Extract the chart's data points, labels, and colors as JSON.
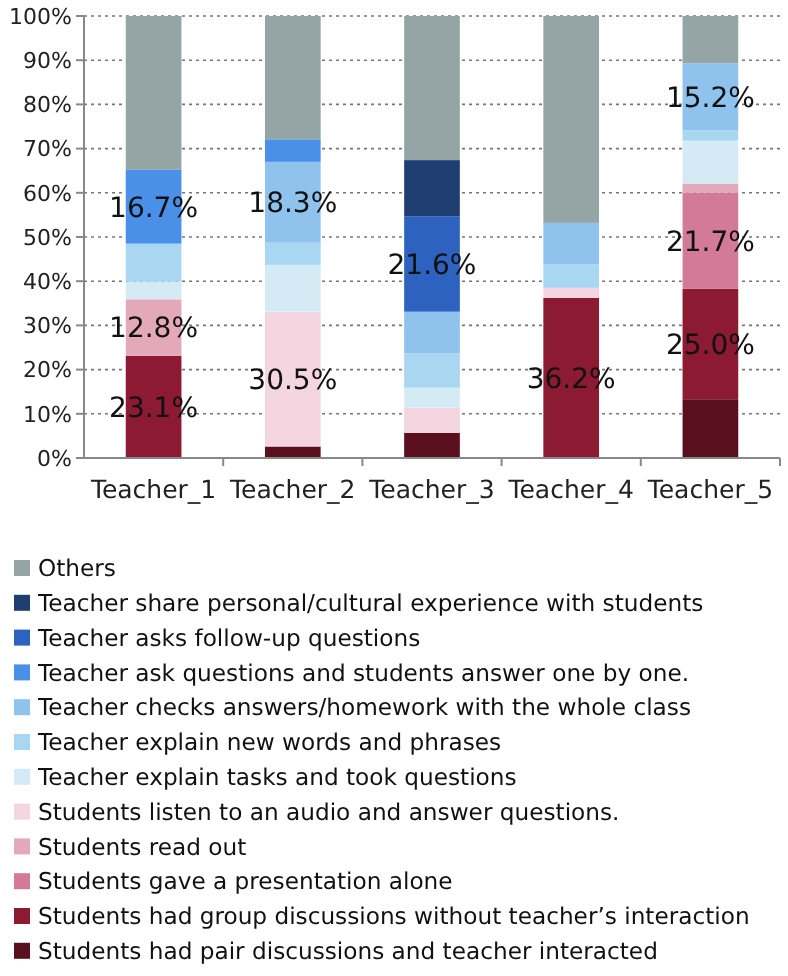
{
  "chart_data": {
    "type": "bar",
    "stacked": true,
    "categories": [
      "Teacher_1",
      "Teacher_2",
      "Teacher_3",
      "Teacher_4",
      "Teacher_5"
    ],
    "ylim": [
      0,
      100
    ],
    "yticks": [
      {
        "value": 0,
        "label": "0%"
      },
      {
        "value": 10,
        "label": "10%"
      },
      {
        "value": 20,
        "label": "20%"
      },
      {
        "value": 30,
        "label": "30%"
      },
      {
        "value": 40,
        "label": "40%"
      },
      {
        "value": 50,
        "label": "50%"
      },
      {
        "value": 60,
        "label": "60%"
      },
      {
        "value": 70,
        "label": "70%"
      },
      {
        "value": 80,
        "label": "80%"
      },
      {
        "value": 90,
        "label": "90%"
      },
      {
        "value": 100,
        "label": "100%"
      }
    ],
    "grid": "y",
    "legend": "bottom",
    "series": [
      {
        "name": "Students had pair discussions and teacher interacted",
        "color": "#5a0f1e",
        "values": [
          0,
          2.6,
          5.7,
          0,
          13.3
        ],
        "value_labels": [
          null,
          null,
          null,
          null,
          null
        ]
      },
      {
        "name": "Students had group discussions without teacher’s interaction",
        "color": "#8b1a32",
        "values": [
          23.1,
          0,
          0,
          36.2,
          25.0
        ],
        "value_labels": [
          "23.1%",
          null,
          null,
          "36.2%",
          "25.0%"
        ]
      },
      {
        "name": "Students gave a presentation alone",
        "color": "#d27a98",
        "values": [
          0,
          0,
          0,
          0,
          21.7
        ],
        "value_labels": [
          null,
          null,
          null,
          null,
          "21.7%"
        ]
      },
      {
        "name": "Students read out",
        "color": "#e3a9bb",
        "values": [
          12.8,
          0,
          0,
          0,
          2.1
        ],
        "value_labels": [
          "12.8%",
          null,
          null,
          null,
          null
        ]
      },
      {
        "name": "Students listen to an audio and answer questions.",
        "color": "#f3d6df",
        "values": [
          0,
          30.5,
          5.7,
          2.3,
          0
        ],
        "value_labels": [
          null,
          "30.5%",
          null,
          null,
          null
        ]
      },
      {
        "name": "Teacher explain tasks and took questions",
        "color": "#d4ebf6",
        "values": [
          4.0,
          10.6,
          4.5,
          0,
          9.7
        ],
        "value_labels": [
          null,
          null,
          null,
          null,
          null
        ]
      },
      {
        "name": "Teacher explain new words and phrases",
        "color": "#a9d6f0",
        "values": [
          8.6,
          5.0,
          7.8,
          5.3,
          2.3
        ],
        "value_labels": [
          null,
          null,
          null,
          null,
          null
        ]
      },
      {
        "name": "Teacher checks answers/homework with the whole class",
        "color": "#8fc3ee",
        "values": [
          0,
          18.3,
          9.4,
          9.4,
          15.2
        ],
        "value_labels": [
          null,
          "18.3%",
          null,
          null,
          "15.2%"
        ]
      },
      {
        "name": "Teacher ask questions and students answer one by one.",
        "color": "#4a90e8",
        "values": [
          16.7,
          5.1,
          0,
          0,
          0
        ],
        "value_labels": [
          "16.7%",
          null,
          null,
          null,
          null
        ]
      },
      {
        "name": "Teacher asks follow-up questions",
        "color": "#2e62c0",
        "values": [
          0,
          0,
          21.6,
          0,
          0
        ],
        "value_labels": [
          null,
          null,
          "21.6%",
          null,
          null
        ]
      },
      {
        "name": "Teacher share personal/cultural experience with students",
        "color": "#1f3f73",
        "values": [
          0,
          0,
          12.7,
          0,
          0
        ],
        "value_labels": [
          null,
          null,
          null,
          null,
          null
        ]
      },
      {
        "name": "Others",
        "color": "#95a5a5",
        "values": [
          34.8,
          27.9,
          32.6,
          46.8,
          10.7
        ],
        "value_labels": [
          null,
          null,
          null,
          null,
          null
        ]
      }
    ]
  }
}
